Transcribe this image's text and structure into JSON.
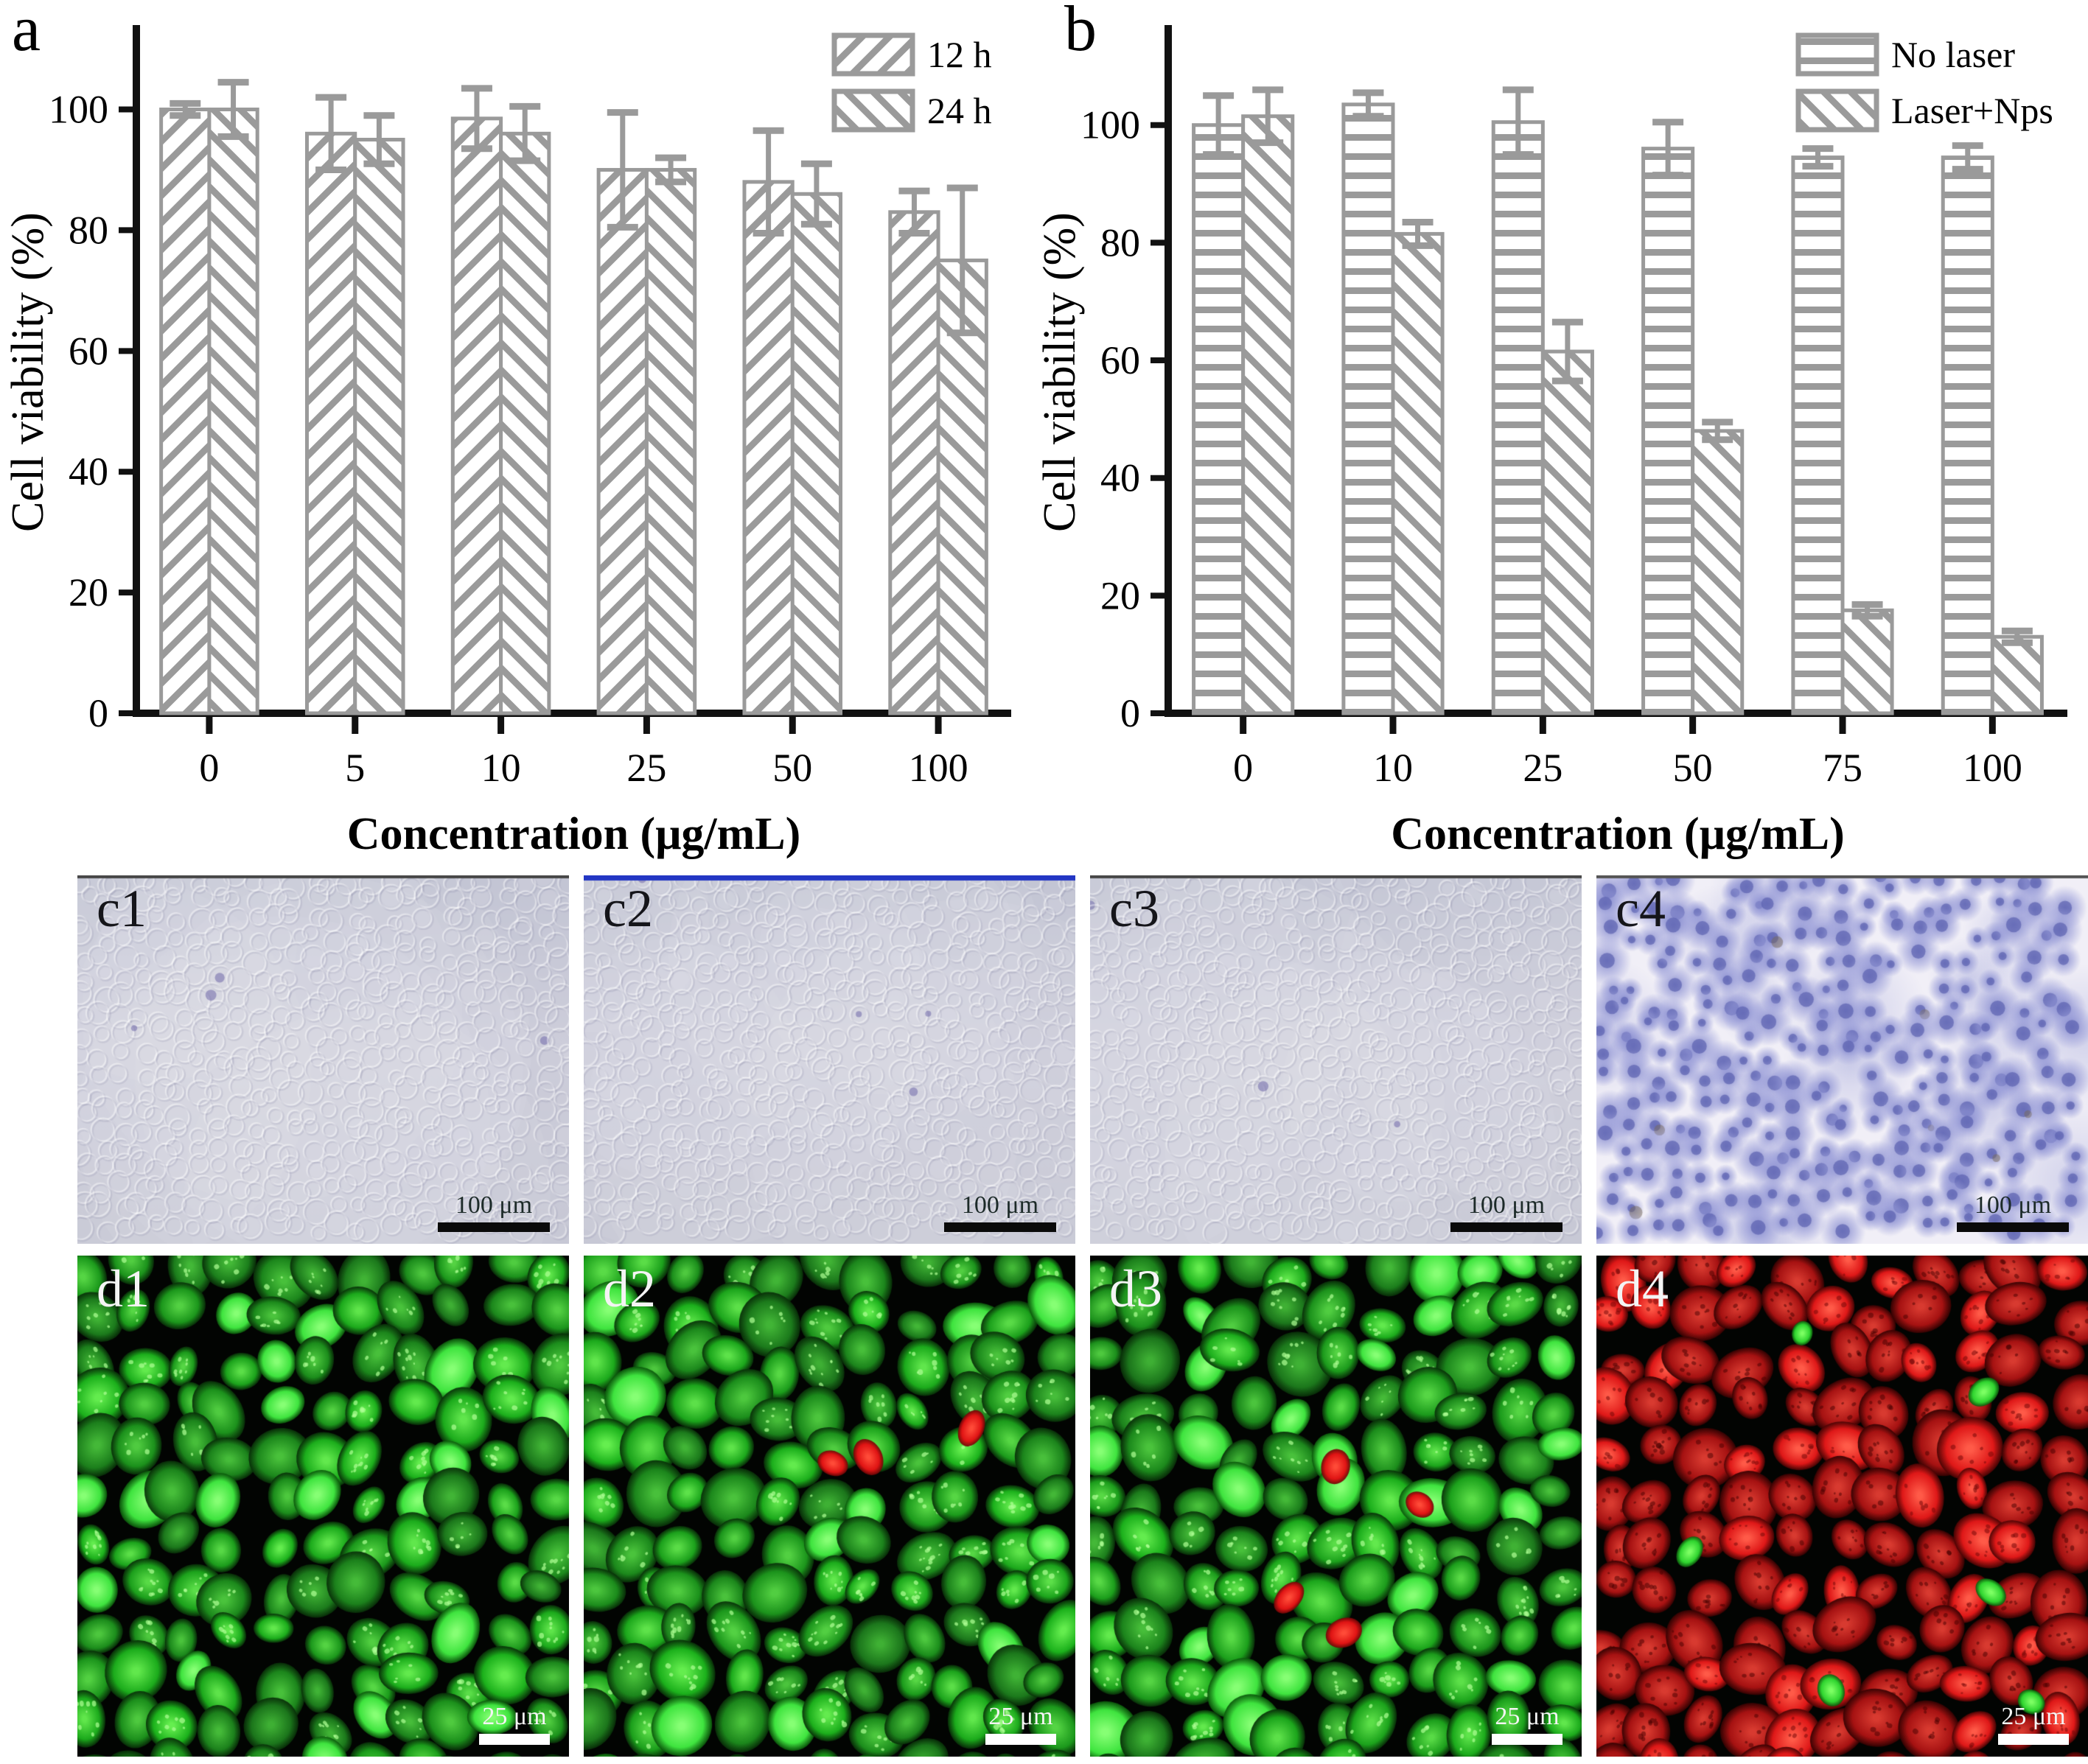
{
  "figure": {
    "panel_a_label": "a",
    "panel_b_label": "b"
  },
  "chart_data": [
    {
      "id": "a",
      "type": "bar",
      "title": "",
      "xlabel": "Concentration (μg/mL)",
      "ylabel": "Cell viability (%)",
      "ylim": [
        0,
        113
      ],
      "yticks": [
        0,
        20,
        40,
        60,
        80,
        100
      ],
      "categories": [
        "0",
        "5",
        "10",
        "25",
        "50",
        "100"
      ],
      "series": [
        {
          "name": "12 h",
          "hatch": "diag-up",
          "values": [
            100,
            96,
            98.5,
            90,
            88,
            83
          ],
          "errors": [
            1,
            6,
            5,
            9.5,
            8.5,
            3.5
          ]
        },
        {
          "name": "24 h",
          "hatch": "diag-down",
          "values": [
            100,
            95,
            96,
            90,
            86,
            75
          ],
          "errors": [
            4.5,
            4,
            4.5,
            2,
            5,
            12
          ]
        }
      ],
      "legend_position": "top-right",
      "grid": false,
      "bar_fill": "#ffffff",
      "hatch_color": "#9a9a9a",
      "axis_color": "#111111"
    },
    {
      "id": "b",
      "type": "bar",
      "title": "",
      "xlabel": "Concentration (μg/mL)",
      "ylabel": "Cell viability (%)",
      "ylim": [
        0,
        116
      ],
      "yticks": [
        0,
        20,
        40,
        60,
        80,
        100
      ],
      "categories": [
        "0",
        "10",
        "25",
        "50",
        "75",
        "100"
      ],
      "series": [
        {
          "name": "No laser",
          "hatch": "horizontal",
          "values": [
            100,
            103.5,
            100.5,
            96,
            94.5,
            94.5
          ],
          "errors": [
            5,
            2,
            5.5,
            4.5,
            1.5,
            2
          ]
        },
        {
          "name": "Laser+Nps",
          "hatch": "diag-down",
          "values": [
            101.5,
            81.5,
            61.5,
            48,
            17.5,
            13
          ],
          "errors": [
            4.5,
            2,
            5,
            1.5,
            1,
            1
          ]
        }
      ],
      "legend_position": "top-right",
      "grid": false,
      "bar_fill": "#ffffff",
      "hatch_color": "#9a9a9a",
      "axis_color": "#111111"
    }
  ],
  "micrographs": {
    "row_c": {
      "scalebar_label": "100 μm",
      "panels": [
        {
          "label": "c1",
          "kind": "brightfield",
          "top_line_color": "#474747"
        },
        {
          "label": "c2",
          "kind": "brightfield",
          "top_line_color": "#2336c4"
        },
        {
          "label": "c3",
          "kind": "brightfield",
          "top_line_color": "#474747"
        },
        {
          "label": "c4",
          "kind": "stained",
          "top_line_color": "#555555"
        }
      ]
    },
    "row_d": {
      "scalebar_label": "25 μm",
      "panels": [
        {
          "label": "d1",
          "kind": "fluorescence",
          "dominant_color": "green",
          "red_cell_count": 0,
          "green_cell_count": 0
        },
        {
          "label": "d2",
          "kind": "fluorescence",
          "dominant_color": "green",
          "red_cell_count": 3,
          "green_cell_count": 0
        },
        {
          "label": "d3",
          "kind": "fluorescence",
          "dominant_color": "green",
          "red_cell_count": 4,
          "green_cell_count": 0
        },
        {
          "label": "d4",
          "kind": "fluorescence",
          "dominant_color": "red",
          "red_cell_count": 0,
          "green_cell_count": 6
        }
      ]
    }
  }
}
